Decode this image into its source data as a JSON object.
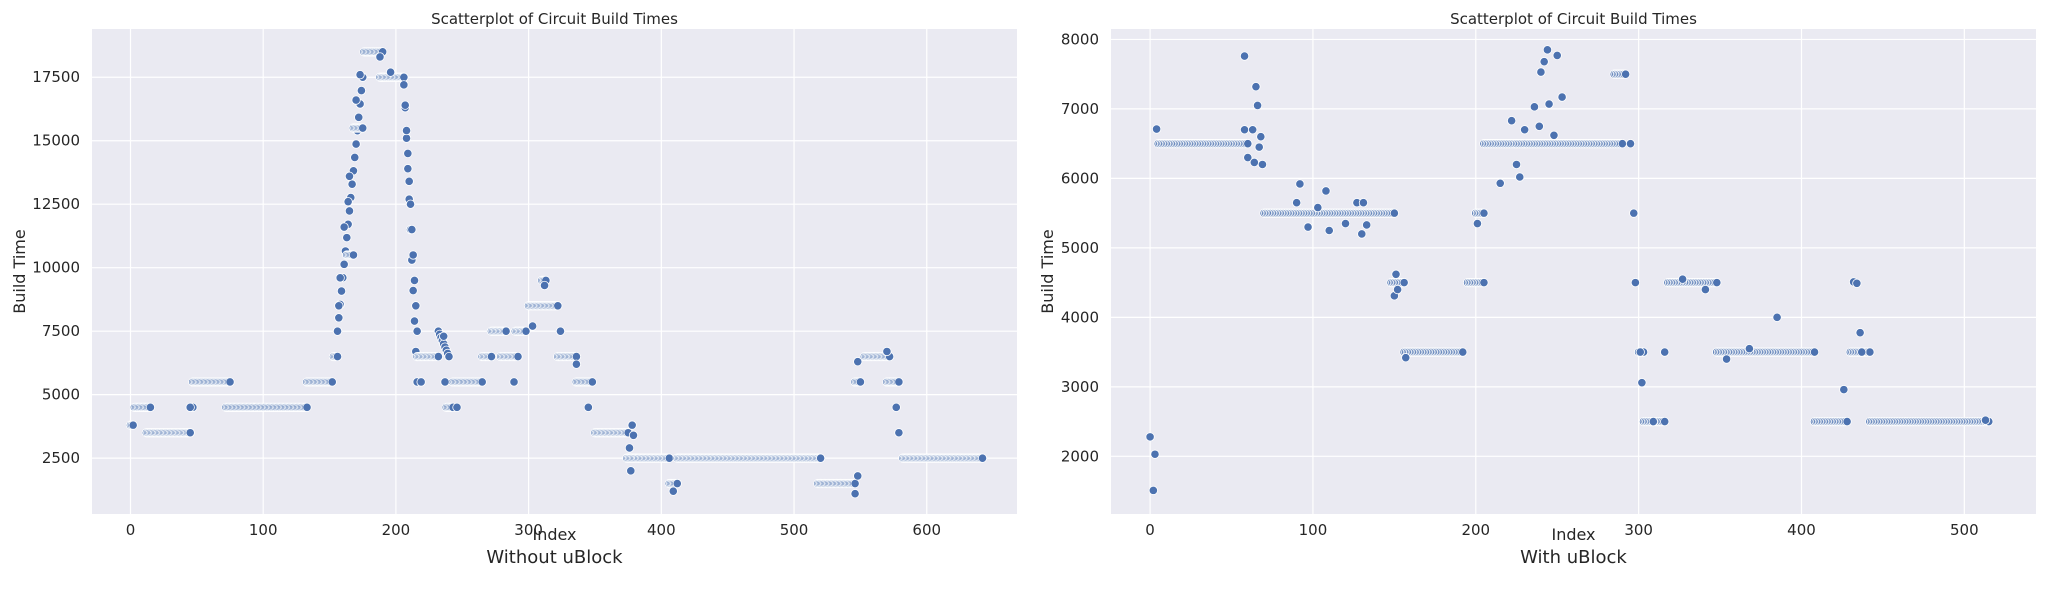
{
  "colors": {
    "background": "#EAEAF2",
    "grid": "#FFFFFF",
    "point": "#4C72B0",
    "point_edge": "#FFFFFF"
  },
  "captions": [
    "Without uBlock",
    "With uBlock"
  ],
  "chart_data": [
    {
      "type": "scatter",
      "title": "Scatterplot of Circuit Build Times",
      "xlabel": "Index",
      "ylabel": "Build Time",
      "xlim": [
        -29,
        668
      ],
      "ylim": [
        300,
        19400
      ],
      "xticks": [
        0,
        100,
        200,
        300,
        400,
        500,
        600
      ],
      "yticks": [
        2500,
        5000,
        7500,
        10000,
        12500,
        15000,
        17500
      ],
      "grid": true,
      "segments": [
        [
          0,
          2,
          3800,
          3800
        ],
        [
          3,
          15,
          4500,
          4500
        ],
        [
          12,
          45,
          3500,
          3500
        ],
        [
          45,
          47,
          4500,
          4500
        ],
        [
          47,
          75,
          5500,
          5500
        ],
        [
          72,
          133,
          4500,
          4500
        ],
        [
          133,
          152,
          5500,
          5500
        ],
        [
          153,
          156,
          6500,
          6500
        ],
        [
          156,
          175,
          7500,
          17500
        ],
        [
          163,
          168,
          10500,
          10500
        ],
        [
          168,
          175,
          15500,
          15500
        ],
        [
          176,
          190,
          18500,
          18500
        ],
        [
          188,
          206,
          17500,
          17500
        ],
        [
          206,
          216,
          17500,
          5500
        ],
        [
          216,
          232,
          6500,
          6500
        ],
        [
          232,
          240,
          7500,
          6500
        ],
        [
          238,
          243,
          4500,
          4500
        ],
        [
          243,
          265,
          5500,
          5500
        ],
        [
          265,
          272,
          6500,
          6500
        ],
        [
          272,
          283,
          7500,
          7500
        ],
        [
          279,
          292,
          6500,
          6500
        ],
        [
          290,
          298,
          7500,
          7500
        ],
        [
          300,
          322,
          8500,
          8500
        ],
        [
          310,
          313,
          9500,
          9500
        ],
        [
          322,
          336,
          6500,
          6500
        ],
        [
          336,
          348,
          5500,
          5500
        ],
        [
          350,
          375,
          3500,
          3500
        ],
        [
          374,
          383,
          2500,
          2500
        ],
        [
          383,
          406,
          2500,
          2500
        ],
        [
          406,
          412,
          1500,
          1500
        ],
        [
          412,
          520,
          2500,
          2500
        ],
        [
          518,
          546,
          1500,
          1500
        ],
        [
          546,
          550,
          5500,
          5500
        ],
        [
          553,
          572,
          6500,
          6500
        ],
        [
          570,
          579,
          5500,
          5500
        ],
        [
          582,
          642,
          2500,
          2500
        ]
      ],
      "points": [
        [
          45,
          3500
        ],
        [
          45,
          4500
        ],
        [
          157,
          8500
        ],
        [
          158,
          9600
        ],
        [
          161,
          11600
        ],
        [
          164,
          12600
        ],
        [
          165,
          13600
        ],
        [
          170,
          16600
        ],
        [
          173,
          17600
        ],
        [
          188,
          18300
        ],
        [
          196,
          17700
        ],
        [
          206,
          17200
        ],
        [
          207,
          16400
        ],
        [
          208,
          15400
        ],
        [
          209,
          14500
        ],
        [
          210,
          13400
        ],
        [
          211,
          12500
        ],
        [
          212,
          11500
        ],
        [
          213,
          10500
        ],
        [
          214,
          9500
        ],
        [
          215,
          8500
        ],
        [
          216,
          7500
        ],
        [
          219,
          5500
        ],
        [
          236,
          7300
        ],
        [
          237,
          5500
        ],
        [
          246,
          4500
        ],
        [
          283,
          7500
        ],
        [
          289,
          5500
        ],
        [
          303,
          7700
        ],
        [
          312,
          9300
        ],
        [
          324,
          7500
        ],
        [
          336,
          6200
        ],
        [
          345,
          4500
        ],
        [
          376,
          2900
        ],
        [
          377,
          2000
        ],
        [
          378,
          3800
        ],
        [
          379,
          3400
        ],
        [
          409,
          1200
        ],
        [
          520,
          2500
        ],
        [
          546,
          1100
        ],
        [
          548,
          1800
        ],
        [
          548,
          6300
        ],
        [
          570,
          6700
        ],
        [
          577,
          4500
        ],
        [
          579,
          3500
        ]
      ]
    },
    {
      "type": "scatter",
      "title": "Scatterplot of Circuit Build Times",
      "xlabel": "Index",
      "ylabel": "Build Time",
      "xlim": [
        -24,
        544
      ],
      "ylim": [
        1170,
        8150
      ],
      "xticks": [
        0,
        100,
        200,
        300,
        400,
        500
      ],
      "yticks": [
        2000,
        3000,
        4000,
        5000,
        6000,
        7000,
        8000
      ],
      "grid": true,
      "segments": [
        [
          5,
          60,
          6500,
          6500
        ],
        [
          70,
          150,
          5500,
          5500
        ],
        [
          148,
          156,
          4500,
          4500
        ],
        [
          156,
          192,
          3500,
          3500
        ],
        [
          195,
          205,
          4500,
          4500
        ],
        [
          200,
          205,
          5500,
          5500
        ],
        [
          205,
          225,
          6500,
          6500
        ],
        [
          225,
          290,
          6500,
          6500
        ],
        [
          285,
          292,
          7500,
          7500
        ],
        [
          300,
          303,
          3500,
          3500
        ],
        [
          303,
          316,
          2500,
          2500
        ],
        [
          318,
          348,
          4500,
          4500
        ],
        [
          348,
          408,
          3500,
          3500
        ],
        [
          408,
          428,
          2500,
          2500
        ],
        [
          430,
          442,
          3500,
          3500
        ],
        [
          442,
          515,
          2500,
          2500
        ]
      ],
      "points": [
        [
          0,
          2280
        ],
        [
          2,
          1510
        ],
        [
          3,
          2030
        ],
        [
          4,
          6710
        ],
        [
          58,
          7760
        ],
        [
          58,
          6700
        ],
        [
          60,
          6300
        ],
        [
          63,
          6700
        ],
        [
          64,
          6230
        ],
        [
          65,
          7320
        ],
        [
          66,
          7050
        ],
        [
          67,
          6450
        ],
        [
          68,
          6600
        ],
        [
          69,
          6200
        ],
        [
          90,
          5650
        ],
        [
          92,
          5920
        ],
        [
          97,
          5300
        ],
        [
          103,
          5580
        ],
        [
          108,
          5820
        ],
        [
          110,
          5250
        ],
        [
          120,
          5350
        ],
        [
          127,
          5650
        ],
        [
          130,
          5200
        ],
        [
          131,
          5650
        ],
        [
          133,
          5330
        ],
        [
          150,
          4310
        ],
        [
          151,
          4620
        ],
        [
          152,
          4400
        ],
        [
          157,
          3420
        ],
        [
          201,
          5350
        ],
        [
          215,
          5930
        ],
        [
          222,
          6830
        ],
        [
          225,
          6200
        ],
        [
          227,
          6020
        ],
        [
          230,
          6700
        ],
        [
          236,
          7030
        ],
        [
          239,
          6750
        ],
        [
          240,
          7530
        ],
        [
          242,
          7680
        ],
        [
          244,
          7850
        ],
        [
          245,
          7070
        ],
        [
          248,
          6620
        ],
        [
          250,
          7770
        ],
        [
          253,
          7170
        ],
        [
          295,
          6500
        ],
        [
          297,
          5500
        ],
        [
          298,
          4500
        ],
        [
          301,
          3500
        ],
        [
          302,
          3060
        ],
        [
          309,
          2500
        ],
        [
          316,
          3500
        ],
        [
          327,
          4550
        ],
        [
          341,
          4400
        ],
        [
          354,
          3400
        ],
        [
          368,
          3550
        ],
        [
          385,
          4000
        ],
        [
          426,
          2960
        ],
        [
          432,
          4510
        ],
        [
          434,
          4490
        ],
        [
          436,
          3780
        ],
        [
          437,
          3500
        ],
        [
          513,
          2520
        ]
      ]
    }
  ]
}
